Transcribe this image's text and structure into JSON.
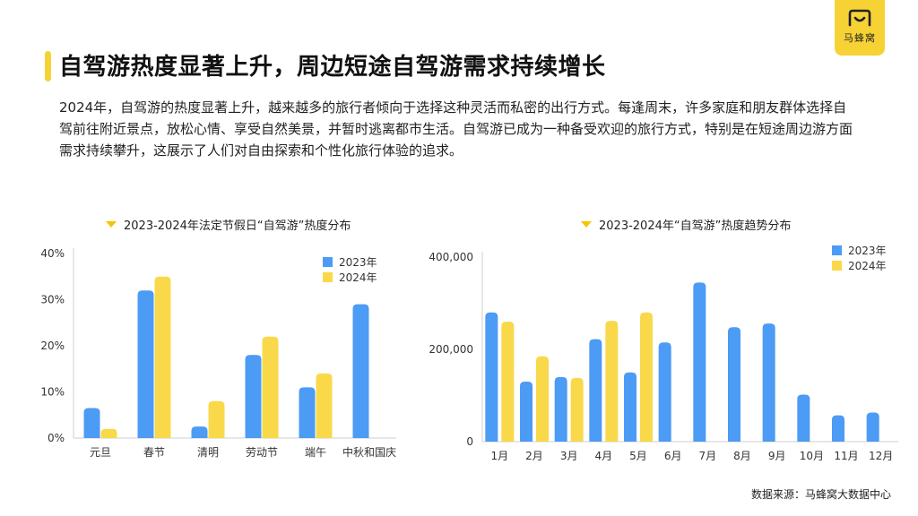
{
  "page": {
    "title": "自驾游热度显著上升，周边短途自驾游需求持续增长",
    "description": "2024年，自驾游的热度显著上升，越来越多的旅行者倾向于选择这种灵活而私密的出行方式。每逢周末，许多家庭和朋友群体选择自驾前往附近景点，放松心情、享受自然美景，并暂时逃离都市生活。自驾游已成为一种备受欢迎的旅行方式，特别是在短途周边游方面需求持续攀升，这展示了人们对自由探索和个性化旅行体验的追求。",
    "logo_text": "马蜂窝",
    "logo_icon": "mafengwo-logo-icon",
    "source": "数据来源：马蜂窝大数据中心"
  },
  "colors": {
    "c2023": "#4c9bf5",
    "c2024": "#f9d94a",
    "accent": "#f7d234"
  },
  "chart_data": [
    {
      "type": "bar",
      "title": "2023-2024年法定节假日“自驾游”热度分布",
      "categories": [
        "元旦",
        "春节",
        "清明",
        "劳动节",
        "端午",
        "中秋和国庆"
      ],
      "series": [
        {
          "name": "2023年",
          "values": [
            6.5,
            32,
            2.5,
            18,
            11,
            29
          ]
        },
        {
          "name": "2024年",
          "values": [
            2,
            35,
            8,
            22,
            14,
            null
          ]
        }
      ],
      "ylim": [
        0,
        40
      ],
      "yticks": [
        0,
        10,
        20,
        30,
        40
      ],
      "ytick_labels": [
        "0%",
        "10%",
        "20%",
        "30%",
        "40%"
      ],
      "legend": "top-right"
    },
    {
      "type": "bar",
      "title": "2023-2024年“自驾游”热度趋势分布",
      "categories": [
        "1月",
        "2月",
        "3月",
        "4月",
        "5月",
        "6月",
        "7月",
        "8月",
        "9月",
        "10月",
        "11月",
        "12月"
      ],
      "series": [
        {
          "name": "2023年",
          "values": [
            280000,
            130000,
            140000,
            222000,
            150000,
            215000,
            345000,
            248000,
            256000,
            102000,
            57000,
            63000
          ]
        },
        {
          "name": "2024年",
          "values": [
            260000,
            185000,
            138000,
            262000,
            280000,
            null,
            null,
            null,
            null,
            null,
            null,
            null
          ]
        }
      ],
      "ylim": [
        0,
        400000
      ],
      "yticks": [
        0,
        200000,
        400000
      ],
      "ytick_labels": [
        "0",
        "200,000",
        "400,000"
      ],
      "legend": "top-right"
    }
  ]
}
